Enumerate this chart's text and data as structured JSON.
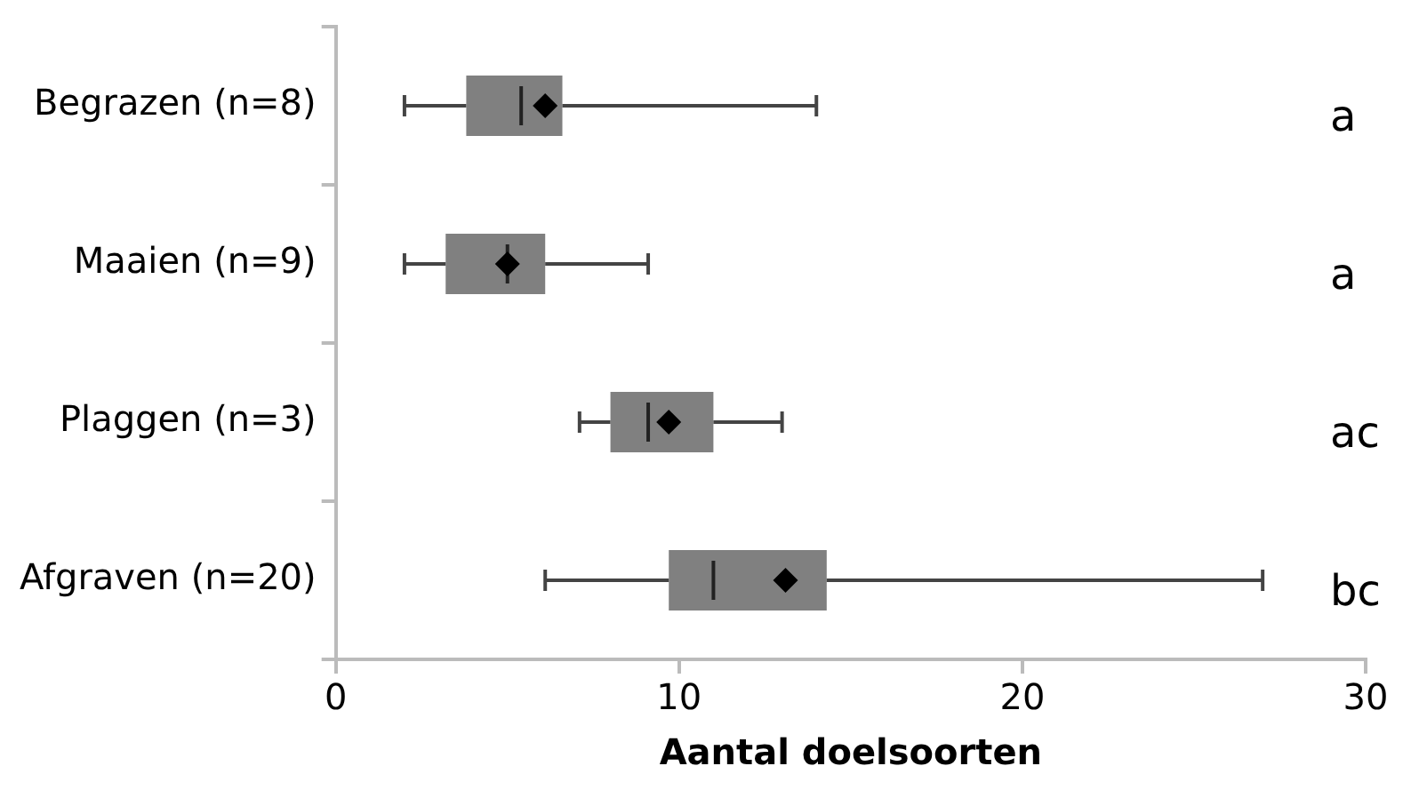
{
  "chart_data": {
    "type": "box",
    "orientation": "horizontal",
    "xlabel": "Aantal doelsoorten",
    "categories": [
      "Begrazen (n=8)",
      "Maaien (n=9)",
      "Plaggen (n=3)",
      "Afgraven (n=20)"
    ],
    "boxes": [
      {
        "low": 2.0,
        "q1": 3.8,
        "median": 5.4,
        "q3": 6.6,
        "high": 14.0,
        "mean": 6.1
      },
      {
        "low": 2.0,
        "q1": 3.2,
        "median": 5.0,
        "q3": 6.1,
        "high": 9.1,
        "mean": 5.0
      },
      {
        "low": 7.1,
        "q1": 8.0,
        "median": 9.1,
        "q3": 11.0,
        "high": 13.0,
        "mean": 9.7
      },
      {
        "low": 6.1,
        "q1": 9.7,
        "median": 11.0,
        "q3": 14.3,
        "high": 27.0,
        "mean": 13.1
      }
    ],
    "color": "#808080",
    "marker": "diamond",
    "xlim": [
      0,
      30
    ],
    "xticks": [
      0,
      10,
      20,
      30
    ],
    "grid": false,
    "legend": false,
    "annotations": [
      "a",
      "a",
      "ac",
      "bc"
    ]
  }
}
